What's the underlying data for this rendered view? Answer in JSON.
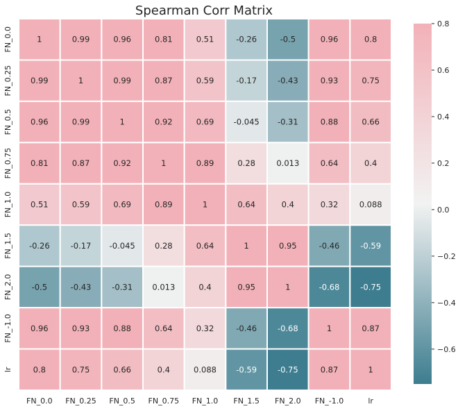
{
  "chart_data": {
    "type": "heatmap",
    "title": "Spearman Corr Matrix",
    "x_labels": [
      "FN_0.0",
      "FN_0.25",
      "FN_0.5",
      "FN_0.75",
      "FN_1.0",
      "FN_1.5",
      "FN_2.0",
      "FN_-1.0",
      "lr"
    ],
    "y_labels": [
      "FN_0.0",
      "FN_0.25",
      "FN_0.5",
      "FN_0.75",
      "FN_1.0",
      "FN_1.5",
      "FN_2.0",
      "FN_-1.0",
      "lr"
    ],
    "values": [
      [
        1,
        0.99,
        0.96,
        0.81,
        0.51,
        -0.26,
        -0.5,
        0.96,
        0.8
      ],
      [
        0.99,
        1,
        0.99,
        0.87,
        0.59,
        -0.17,
        -0.43,
        0.93,
        0.75
      ],
      [
        0.96,
        0.99,
        1,
        0.92,
        0.69,
        -0.045,
        -0.31,
        0.88,
        0.66
      ],
      [
        0.81,
        0.87,
        0.92,
        1,
        0.89,
        0.28,
        0.013,
        0.64,
        0.4
      ],
      [
        0.51,
        0.59,
        0.69,
        0.89,
        1,
        0.64,
        0.4,
        0.32,
        0.088
      ],
      [
        -0.26,
        -0.17,
        -0.045,
        0.28,
        0.64,
        1,
        0.95,
        -0.46,
        -0.59
      ],
      [
        -0.5,
        -0.43,
        -0.31,
        0.013,
        0.4,
        0.95,
        1,
        -0.68,
        -0.75
      ],
      [
        0.96,
        0.93,
        0.88,
        0.64,
        0.32,
        -0.46,
        -0.68,
        1,
        0.87
      ],
      [
        0.8,
        0.75,
        0.66,
        0.4,
        0.088,
        -0.59,
        -0.75,
        0.87,
        1
      ]
    ],
    "value_labels": [
      [
        "1",
        "0.99",
        "0.96",
        "0.81",
        "0.51",
        "-0.26",
        "-0.5",
        "0.96",
        "0.8"
      ],
      [
        "0.99",
        "1",
        "0.99",
        "0.87",
        "0.59",
        "-0.17",
        "-0.43",
        "0.93",
        "0.75"
      ],
      [
        "0.96",
        "0.99",
        "1",
        "0.92",
        "0.69",
        "-0.045",
        "-0.31",
        "0.88",
        "0.66"
      ],
      [
        "0.81",
        "0.87",
        "0.92",
        "1",
        "0.89",
        "0.28",
        "0.013",
        "0.64",
        "0.4"
      ],
      [
        "0.51",
        "0.59",
        "0.69",
        "0.89",
        "1",
        "0.64",
        "0.4",
        "0.32",
        "0.088"
      ],
      [
        "-0.26",
        "-0.17",
        "-0.045",
        "0.28",
        "0.64",
        "1",
        "0.95",
        "-0.46",
        "-0.59"
      ],
      [
        "-0.5",
        "-0.43",
        "-0.31",
        "0.013",
        "0.4",
        "0.95",
        "1",
        "-0.68",
        "-0.75"
      ],
      [
        "0.96",
        "0.93",
        "0.88",
        "0.64",
        "0.32",
        "-0.46",
        "-0.68",
        "1",
        "0.87"
      ],
      [
        "0.8",
        "0.75",
        "0.66",
        "0.4",
        "0.088",
        "-0.59",
        "-0.75",
        "0.87",
        "1"
      ]
    ],
    "vmin": -0.75,
    "vmax": 0.8,
    "colorbar_ticks": [
      0.8,
      0.6,
      0.4,
      0.2,
      0.0,
      -0.2,
      -0.4,
      -0.6
    ],
    "colorbar_tick_labels": [
      "0.8",
      "0.6",
      "0.4",
      "0.2",
      "0.0",
      "−0.2",
      "−0.4",
      "−0.6"
    ],
    "colormap": {
      "low": "#3d7d8f",
      "mid": "#f2f2f2",
      "high": "#f2b1b8"
    },
    "cell_border_color": "#ffffff",
    "grid": false,
    "legend": "colorbar-right"
  }
}
